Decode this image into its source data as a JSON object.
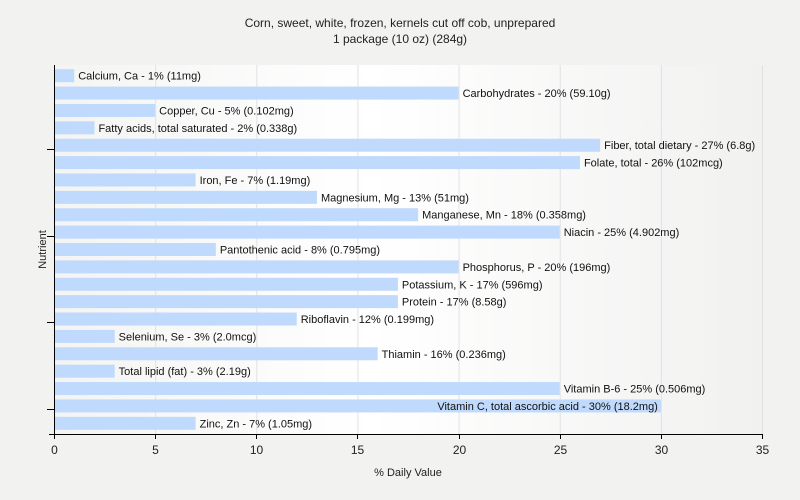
{
  "chart_data": {
    "type": "bar",
    "orientation": "horizontal",
    "title": "Corn, sweet, white, frozen, kernels cut off cob, unprepared",
    "subtitle": "1 package (10 oz) (284g)",
    "xlabel": "% Daily Value",
    "ylabel": "Nutrient",
    "xlim": [
      0,
      35
    ],
    "xticks": [
      0,
      5,
      10,
      15,
      20,
      25,
      30,
      35
    ],
    "grid": true,
    "bar_color": "#bfdafc",
    "categories": [
      "Calcium, Ca",
      "Carbohydrates",
      "Copper, Cu",
      "Fatty acids, total saturated",
      "Fiber, total dietary",
      "Folate, total",
      "Iron, Fe",
      "Magnesium, Mg",
      "Manganese, Mn",
      "Niacin",
      "Pantothenic acid",
      "Phosphorus, P",
      "Potassium, K",
      "Protein",
      "Riboflavin",
      "Selenium, Se",
      "Thiamin",
      "Total lipid (fat)",
      "Vitamin B-6",
      "Vitamin C, total ascorbic acid",
      "Zinc, Zn"
    ],
    "values": [
      1,
      20,
      5,
      2,
      27,
      26,
      7,
      13,
      18,
      25,
      8,
      20,
      17,
      17,
      12,
      3,
      16,
      3,
      25,
      30,
      7
    ],
    "labels": [
      "Calcium, Ca - 1% (11mg)",
      "Carbohydrates - 20% (59.10g)",
      "Copper, Cu - 5% (0.102mg)",
      "Fatty acids, total saturated - 2% (0.338g)",
      "Fiber, total dietary - 27% (6.8g)",
      "Folate, total - 26% (102mcg)",
      "Iron, Fe - 7% (1.19mg)",
      "Magnesium, Mg - 13% (51mg)",
      "Manganese, Mn - 18% (0.358mg)",
      "Niacin - 25% (4.902mg)",
      "Pantothenic acid - 8% (0.795mg)",
      "Phosphorus, P - 20% (196mg)",
      "Potassium, K - 17% (596mg)",
      "Protein - 17% (8.58g)",
      "Riboflavin - 12% (0.199mg)",
      "Selenium, Se - 3% (2.0mcg)",
      "Thiamin - 16% (0.236mg)",
      "Total lipid (fat) - 3% (2.19g)",
      "Vitamin B-6 - 25% (0.506mg)",
      "Vitamin C, total ascorbic acid - 30% (18.2mg)",
      "Zinc, Zn - 7% (1.05mg)"
    ]
  }
}
